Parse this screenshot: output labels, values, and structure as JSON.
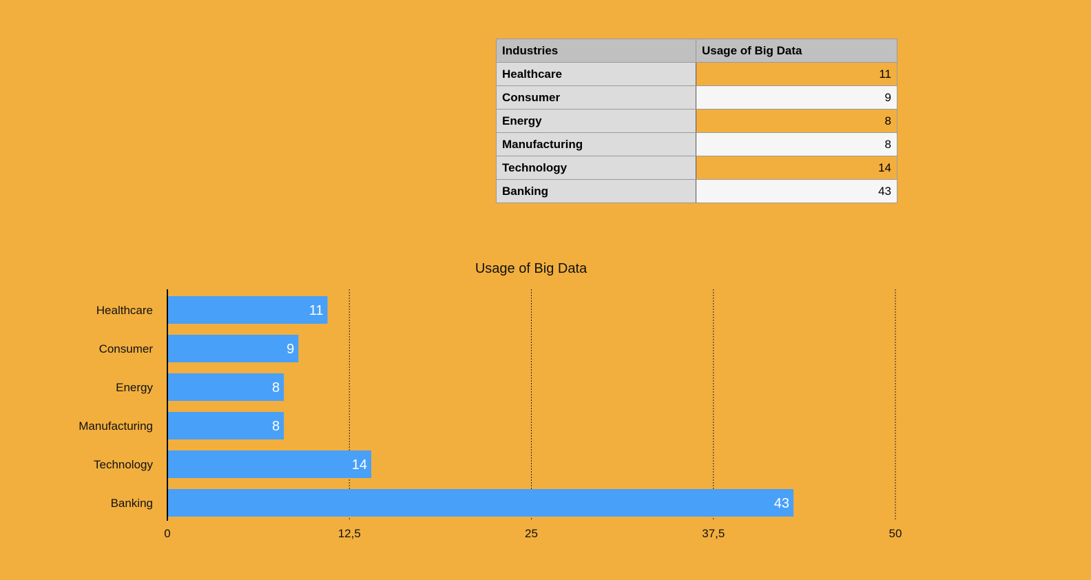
{
  "table": {
    "headers": [
      "Industries",
      "Usage of Big Data"
    ],
    "rows": [
      {
        "industry": "Healthcare",
        "value": "11"
      },
      {
        "industry": "Consumer",
        "value": "9"
      },
      {
        "industry": "Energy",
        "value": "8"
      },
      {
        "industry": "Manufacturing",
        "value": "8"
      },
      {
        "industry": "Technology",
        "value": "14"
      },
      {
        "industry": "Banking",
        "value": "43"
      }
    ]
  },
  "chart_data": {
    "type": "bar",
    "orientation": "horizontal",
    "title": "Usage of Big Data",
    "categories": [
      "Healthcare",
      "Consumer",
      "Energy",
      "Manufacturing",
      "Technology",
      "Banking"
    ],
    "values": [
      11,
      9,
      8,
      8,
      14,
      43
    ],
    "xlim": [
      0,
      50
    ],
    "x_ticks": [
      0,
      12.5,
      25,
      37.5,
      50
    ],
    "x_tick_labels": [
      "0",
      "12,5",
      "25",
      "37,5",
      "50"
    ],
    "grid": "vertical dotted",
    "data_labels": true,
    "legend": "none",
    "colors": {
      "bar": "#48A0F8",
      "background": "#F2AF3E",
      "data_label": "#FFFFFF"
    }
  }
}
